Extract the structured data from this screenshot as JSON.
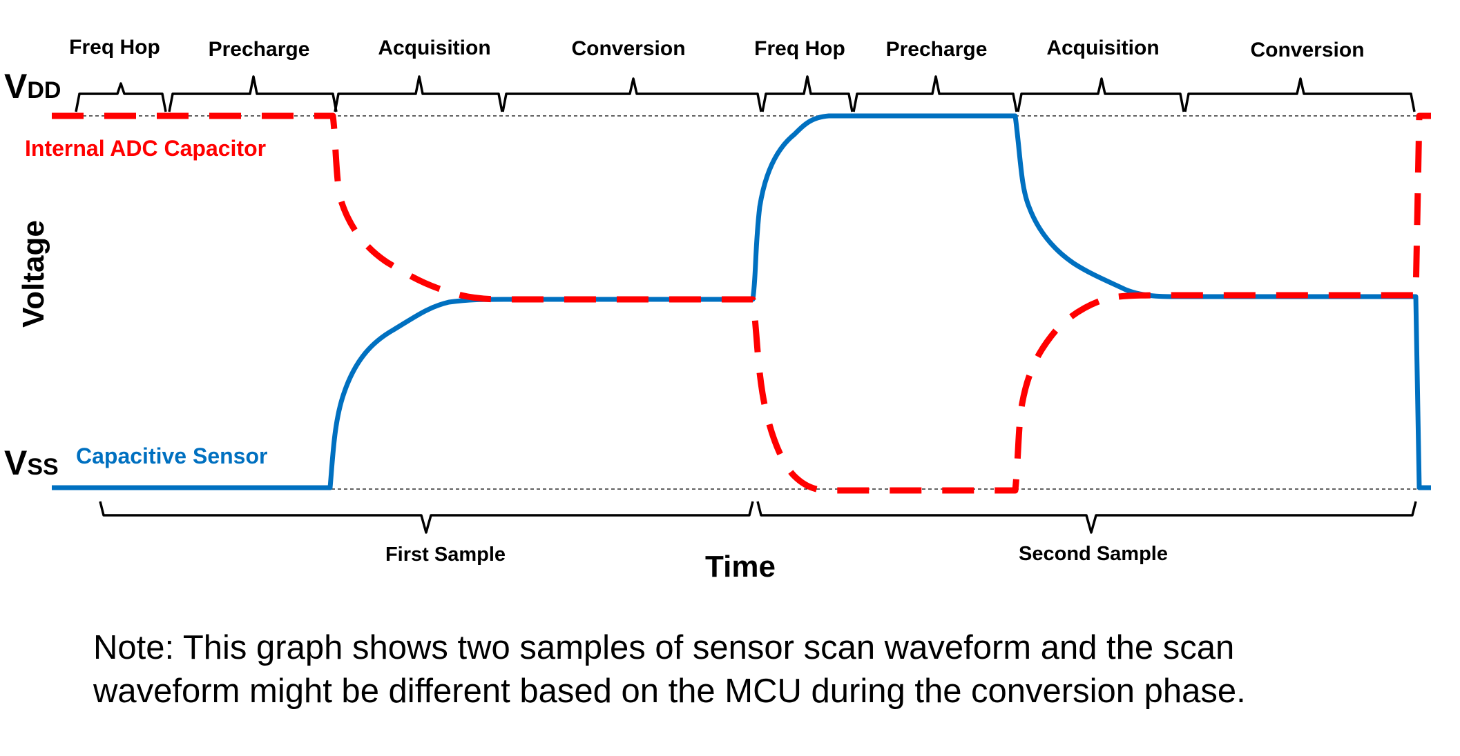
{
  "phase_labels": {
    "s1_freq_hop": "Freq Hop",
    "s1_precharge": "Precharge",
    "s1_acquisition": "Acquisition",
    "s1_conversion": "Conversion",
    "s2_freq_hop": "Freq Hop",
    "s2_precharge": "Precharge",
    "s2_acquisition": "Acquisition",
    "s2_conversion": "Conversion"
  },
  "rails": {
    "vdd_main": "V",
    "vdd_sub": "DD",
    "vss_main": "V",
    "vss_sub": "SS"
  },
  "traces": {
    "adc_label": "Internal ADC Capacitor",
    "sensor_label": "Capacitive Sensor",
    "adc_color": "#ff0000",
    "sensor_color": "#0070c0"
  },
  "axes": {
    "y_label": "Voltage",
    "x_label": "Time"
  },
  "samples": {
    "first": "First Sample",
    "second": "Second Sample"
  },
  "note": {
    "line1": "Note:  This graph shows two samples of sensor scan waveform and the scan",
    "line2": "waveform might be different based on the MCU during the conversion phase."
  }
}
